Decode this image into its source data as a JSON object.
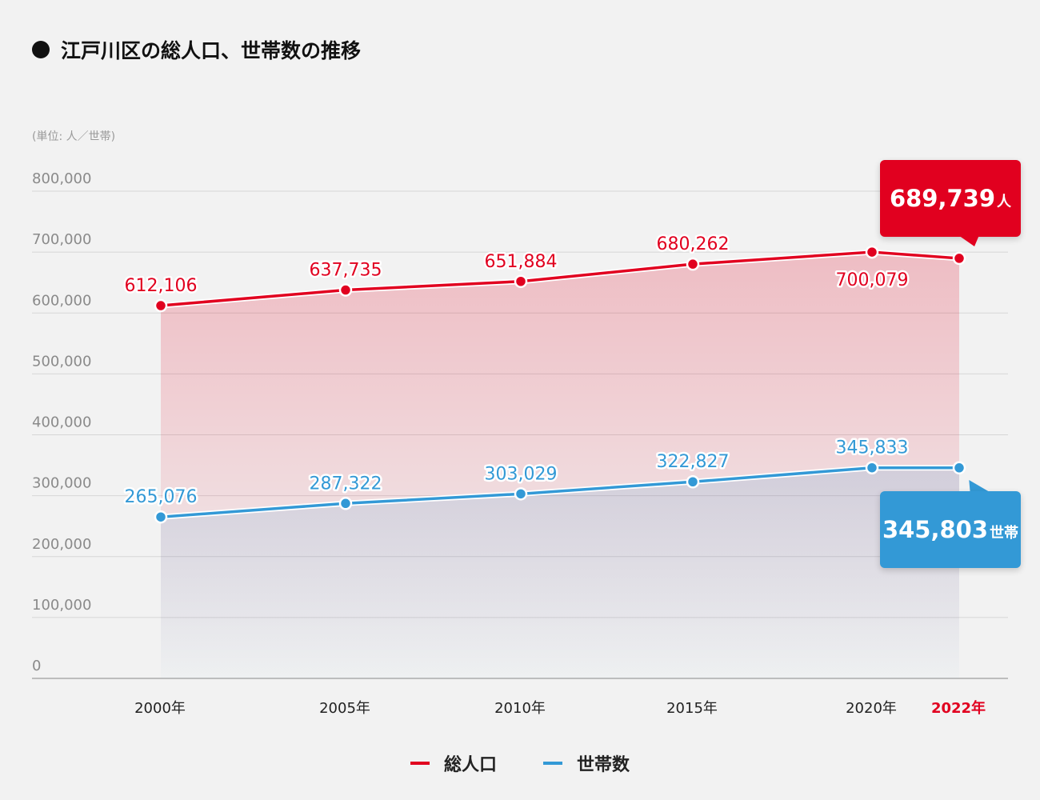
{
  "colors": {
    "population": "#e1001f",
    "households": "#3399d6",
    "grid": "#d6d6d6",
    "background": "#f2f2f2"
  },
  "chart_data": {
    "type": "line",
    "title": "江戸川区の総人口、世帯数の推移",
    "unit_note": "(単位: 人／世帯)",
    "x": [
      "2000年",
      "2005年",
      "2010年",
      "2015年",
      "2020年",
      "2022年"
    ],
    "x_highlight": "2022年",
    "ylim": [
      0,
      800000
    ],
    "yticks": [
      {
        "value": 0,
        "label": "0"
      },
      {
        "value": 100000,
        "label": "100,000"
      },
      {
        "value": 200000,
        "label": "200,000"
      },
      {
        "value": 300000,
        "label": "300,000"
      },
      {
        "value": 400000,
        "label": "400,000"
      },
      {
        "value": 500000,
        "label": "500,000"
      },
      {
        "value": 600000,
        "label": "600,000"
      },
      {
        "value": 700000,
        "label": "700,000"
      },
      {
        "value": 800000,
        "label": "800,000"
      }
    ],
    "series": [
      {
        "name": "総人口",
        "key": "population",
        "values": [
          612106,
          637735,
          651884,
          680262,
          700079,
          689739
        ],
        "labels": [
          "612,106",
          "637,735",
          "651,884",
          "680,262",
          "700,079",
          ""
        ]
      },
      {
        "name": "世帯数",
        "key": "households",
        "values": [
          265076,
          287322,
          303029,
          322827,
          345833,
          345803
        ],
        "labels": [
          "265,076",
          "287,322",
          "303,029",
          "322,827",
          "345,833",
          ""
        ]
      }
    ],
    "callouts": {
      "population": {
        "value": "689,739",
        "unit": "人"
      },
      "households": {
        "value": "345,803",
        "unit": "世帯"
      }
    },
    "legend": [
      {
        "name": "総人口",
        "key": "population"
      },
      {
        "name": "世帯数",
        "key": "households"
      }
    ]
  }
}
